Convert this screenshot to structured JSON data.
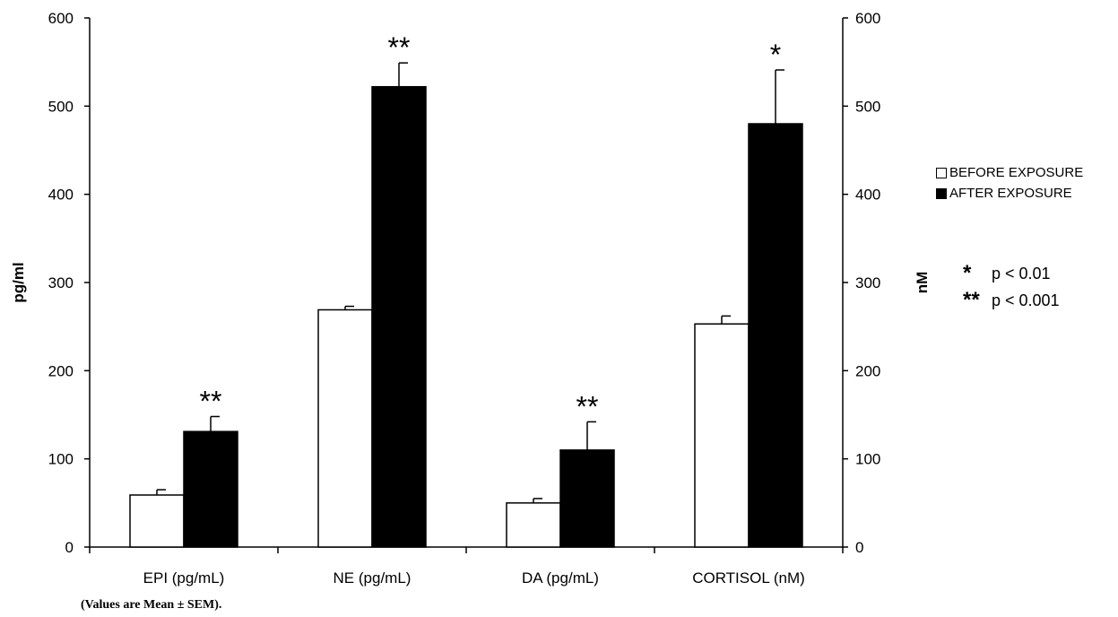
{
  "chart_data": {
    "type": "bar",
    "categories": [
      "EPI (pg/mL)",
      "NE (pg/mL)",
      "DA (pg/mL)",
      "CORTISOL (nM)"
    ],
    "series": [
      {
        "name": "BEFORE EXPOSURE",
        "values": [
          59,
          269,
          50,
          253
        ],
        "errors": [
          6,
          4,
          5,
          9
        ],
        "color": "#ffffff"
      },
      {
        "name": "AFTER EXPOSURE",
        "values": [
          131,
          522,
          110,
          480
        ],
        "errors": [
          17,
          27,
          32,
          61
        ],
        "color": "#000000"
      }
    ],
    "significance": [
      "**",
      "**",
      "**",
      "*"
    ],
    "ylabel": "pg/ml",
    "y2label": "nM",
    "ylim": [
      0,
      600
    ],
    "y2lim": [
      0,
      600
    ],
    "yticks": [
      0,
      100,
      200,
      300,
      400,
      500,
      600
    ],
    "grid": false,
    "legend_position": "right"
  },
  "legend": {
    "before": "BEFORE EXPOSURE",
    "after": "AFTER EXPOSURE"
  },
  "significance_key": [
    {
      "stars": "*",
      "text": "p < 0.01"
    },
    {
      "stars": "**",
      "text": "p < 0.001"
    }
  ],
  "footnote": "(Values are Mean ± SEM)."
}
